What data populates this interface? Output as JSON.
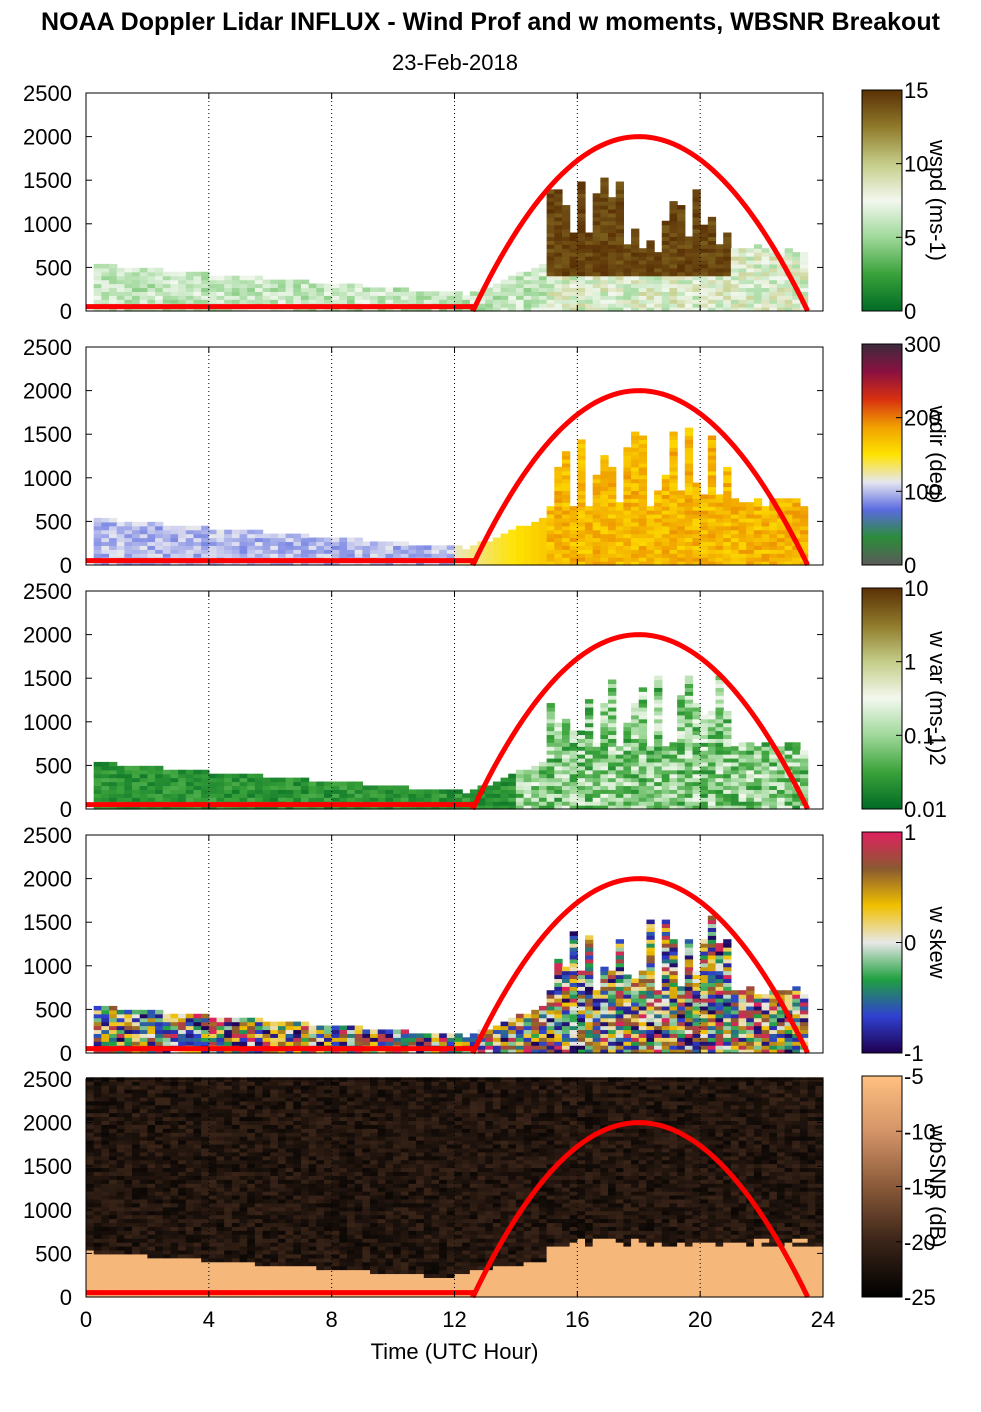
{
  "title": "NOAA Doppler Lidar INFLUX - Wind Prof and w moments, WBSNR Breakout",
  "subtitle": "23-Feb-2018",
  "xlabel": "Time (UTC Hour)",
  "x_ticks": [
    "0",
    "4",
    "8",
    "12",
    "16",
    "20",
    "24"
  ],
  "y_ticks": [
    "0",
    "500",
    "1000",
    "1500",
    "2000",
    "2500"
  ],
  "chart_data": [
    {
      "type": "heatmap",
      "panel": "wind speed",
      "colorbar_label": "wspd (ms-1)",
      "colorbar_ticks": [
        "0",
        "5",
        "10",
        "15"
      ],
      "cbar_colors": [
        "#006b25",
        "#3aa23a",
        "#9fd89a",
        "#f3f8ef",
        "#c4cd88",
        "#8f7a2a",
        "#5a3005"
      ],
      "xlim": [
        0,
        24
      ],
      "ylim": [
        0,
        2500
      ],
      "sun_curve": {
        "color": "#ff0000",
        "x": [
          12.6,
          18,
          23.5
        ],
        "peak": 2000
      }
    },
    {
      "type": "heatmap",
      "panel": "wind direction",
      "colorbar_label": "wdir (deg)",
      "colorbar_ticks": [
        "0",
        "100",
        "200",
        "300"
      ],
      "cbar_colors": [
        "#5a5a5a",
        "#2c8c3a",
        "#5a6be0",
        "#e6e6f0",
        "#ffe300",
        "#f0a000",
        "#d83010",
        "#8a1040",
        "#3c2c3c"
      ],
      "xlim": [
        0,
        24
      ],
      "ylim": [
        0,
        2500
      ],
      "sun_curve": {
        "color": "#ff0000",
        "x": [
          12.6,
          18,
          23.5
        ],
        "peak": 2000
      }
    },
    {
      "type": "heatmap",
      "panel": "w variance",
      "colorbar_label": "w var (ms-1)2",
      "colorbar_ticks": [
        "0.01",
        "0.1",
        "1",
        "10"
      ],
      "cbar_colors": [
        "#006b25",
        "#3aa23a",
        "#9fd89a",
        "#f3f8ef",
        "#c4cd88",
        "#8f7a2a",
        "#5a3005"
      ],
      "xlim": [
        0,
        24
      ],
      "ylim": [
        0,
        2500
      ],
      "sun_curve": {
        "color": "#ff0000",
        "x": [
          12.6,
          18,
          23.5
        ],
        "peak": 2000
      }
    },
    {
      "type": "heatmap",
      "panel": "w skewness",
      "colorbar_label": "w skew",
      "colorbar_ticks": [
        "-1",
        "0",
        "1"
      ],
      "cbar_colors": [
        "#1e0050",
        "#3040d0",
        "#20a040",
        "#e8e8e8",
        "#f0c000",
        "#8a5a30",
        "#e02060"
      ],
      "xlim": [
        0,
        24
      ],
      "ylim": [
        0,
        2500
      ],
      "sun_curve": {
        "color": "#ff0000",
        "x": [
          12.6,
          18,
          23.5
        ],
        "peak": 2000
      }
    },
    {
      "type": "heatmap",
      "panel": "wideband SNR",
      "colorbar_label": "wbSNR (dB)",
      "colorbar_ticks": [
        "-25",
        "-20",
        "-15",
        "-10",
        "-5"
      ],
      "cbar_colors": [
        "#000000",
        "#3a2418",
        "#8a5a3a",
        "#d49468",
        "#ffc080"
      ],
      "xlim": [
        0,
        24
      ],
      "ylim": [
        0,
        2500
      ],
      "sun_curve": {
        "color": "#ff0000",
        "x": [
          12.6,
          18,
          23.5
        ],
        "peak": 2000
      }
    }
  ]
}
